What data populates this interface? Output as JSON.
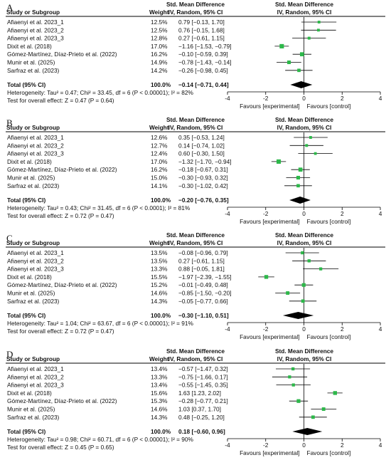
{
  "headers": {
    "study": "Study or Subgroup",
    "weight": "Weight",
    "smd_title": "Std. Mean Difference",
    "smd_method": "IV, Random, 95% CI"
  },
  "axis": {
    "ticks": [
      -4,
      -2,
      0,
      2,
      4
    ],
    "tick_labels": [
      "-4",
      "-2",
      "0",
      "2",
      "4"
    ],
    "favours_left": "Favours [experimental]",
    "favours_right": "Favours [control]"
  },
  "colors": {
    "point": "#2db84a",
    "diamond": "#000000",
    "line": "#000000"
  },
  "chart_data": [
    {
      "type": "forest",
      "panel": "A",
      "xlim": [
        -4,
        4
      ],
      "studies": [
        {
          "name": "Afiaenyi et al. 2023_1",
          "weight": "12.5%",
          "smd": 0.79,
          "lo": -0.13,
          "hi": 1.7,
          "ci_text": "0.79 [−0.13, 1.70]"
        },
        {
          "name": "Afiaenyi et al. 2023_2",
          "weight": "12.5%",
          "smd": 0.76,
          "lo": -0.15,
          "hi": 1.68,
          "ci_text": "0.76 [−0.15, 1.68]"
        },
        {
          "name": "Afiaenyi et al. 2023_3",
          "weight": "12.8%",
          "smd": 0.27,
          "lo": -0.61,
          "hi": 1.15,
          "ci_text": "0.27 [−0.61, 1.15]"
        },
        {
          "name": "Dixit et al. (2018)",
          "weight": "17.0%",
          "smd": -1.16,
          "lo": -1.53,
          "hi": -0.79,
          "ci_text": "−1.16 [−1.53, −0.79]"
        },
        {
          "name": "Gómez-Martínez, Díaz-Prieto et al. (2022)",
          "weight": "16.2%",
          "smd": -0.1,
          "lo": -0.59,
          "hi": 0.39,
          "ci_text": "−0.10 [−0.59, 0.39]"
        },
        {
          "name": "Munir et al. (2025)",
          "weight": "14.9%",
          "smd": -0.78,
          "lo": -1.43,
          "hi": -0.14,
          "ci_text": "−0.78 [−1.43, −0.14]"
        },
        {
          "name": "Sarfraz et al. (2023)",
          "weight": "14.2%",
          "smd": -0.26,
          "lo": -0.98,
          "hi": 0.45,
          "ci_text": "−0.26 [−0.98, 0.45]"
        }
      ],
      "total": {
        "label": "Total (95% CI)",
        "weight": "100.0%",
        "smd": -0.14,
        "lo": -0.71,
        "hi": 0.44,
        "ci_text": "−0.14 [−0.71, 0.44]"
      },
      "heterogeneity": "Heterogeneity: Tau² = 0.47; Chi² = 33.45, df = 6 (P < 0.00001); I² = 82%",
      "overall_effect": "Test for overall effect: Z = 0.47 (P = 0.64)"
    },
    {
      "type": "forest",
      "panel": "B",
      "xlim": [
        -4,
        4
      ],
      "studies": [
        {
          "name": "Afiaenyi et al. 2023_1",
          "weight": "12.6%",
          "smd": 0.35,
          "lo": -0.53,
          "hi": 1.24,
          "ci_text": "0.35 [−0.53, 1.24]"
        },
        {
          "name": "Afiaenyi et al. 2023_2",
          "weight": "12.7%",
          "smd": 0.14,
          "lo": -0.74,
          "hi": 1.02,
          "ci_text": "0.14 [−0.74, 1.02]"
        },
        {
          "name": "Afiaenyi et al. 2023_3",
          "weight": "12.4%",
          "smd": 0.6,
          "lo": -0.3,
          "hi": 1.5,
          "ci_text": "0.60 [−0.30, 1.50]"
        },
        {
          "name": "Dixit et al. (2018)",
          "weight": "17.0%",
          "smd": -1.32,
          "lo": -1.7,
          "hi": -0.94,
          "ci_text": "−1.32 [−1.70, −0.94]"
        },
        {
          "name": "Gómez-Martínez, Díaz-Prieto et al. (2022)",
          "weight": "16.2%",
          "smd": -0.18,
          "lo": -0.67,
          "hi": 0.31,
          "ci_text": "−0.18 [−0.67, 0.31]"
        },
        {
          "name": "Munir et al. (2025)",
          "weight": "15.0%",
          "smd": -0.3,
          "lo": -0.93,
          "hi": 0.32,
          "ci_text": "−0.30 [−0.93, 0.32]"
        },
        {
          "name": "Sarfraz et al. (2023)",
          "weight": "14.1%",
          "smd": -0.3,
          "lo": -1.02,
          "hi": 0.42,
          "ci_text": "−0.30 [−1.02, 0.42]"
        }
      ],
      "total": {
        "label": "Total (95% CI)",
        "weight": "100.0%",
        "smd": -0.2,
        "lo": -0.76,
        "hi": 0.35,
        "ci_text": "−0.20 [−0.76, 0.35]"
      },
      "heterogeneity": "Heterogeneity: Tau² = 0.43; Chi² = 31.45, df = 6 (P < 0.0001); I² = 81%",
      "overall_effect": "Test for overall effect: Z = 0.72 (P = 0.47)"
    },
    {
      "type": "forest",
      "panel": "C",
      "xlim": [
        -4,
        4
      ],
      "studies": [
        {
          "name": "Afiaenyi et al. 2023_1",
          "weight": "13.5%",
          "smd": -0.08,
          "lo": -0.96,
          "hi": 0.79,
          "ci_text": "−0.08 [−0.96, 0.79]"
        },
        {
          "name": "Afiaenyi et al. 2023_2",
          "weight": "13.5%",
          "smd": 0.27,
          "lo": -0.61,
          "hi": 1.15,
          "ci_text": "0.27 [−0.61, 1.15]"
        },
        {
          "name": "Afiaenyi et al. 2023_3",
          "weight": "13.3%",
          "smd": 0.88,
          "lo": -0.05,
          "hi": 1.81,
          "ci_text": "0.88 [−0.05, 1.81]"
        },
        {
          "name": "Dixit et al. (2018)",
          "weight": "15.5%",
          "smd": -1.97,
          "lo": -2.39,
          "hi": -1.55,
          "ci_text": "−1.97 [−2.39, −1.55]"
        },
        {
          "name": "Gómez-Martínez, Díaz-Prieto et al. (2022)",
          "weight": "15.2%",
          "smd": -0.01,
          "lo": -0.49,
          "hi": 0.48,
          "ci_text": "−0.01 [−0.49, 0.48]"
        },
        {
          "name": "Munir et al. (2025)",
          "weight": "14.6%",
          "smd": -0.85,
          "lo": -1.5,
          "hi": -0.2,
          "ci_text": "−0.85 [−1.50, −0.20]"
        },
        {
          "name": "Sarfraz et al. (2023)",
          "weight": "14.3%",
          "smd": -0.05,
          "lo": -0.77,
          "hi": 0.66,
          "ci_text": "−0.05 [−0.77, 0.66]"
        }
      ],
      "total": {
        "label": "Total (95% CI)",
        "weight": "100.0%",
        "smd": -0.3,
        "lo": -1.1,
        "hi": 0.51,
        "ci_text": "−0.30 [−1.10, 0.51]"
      },
      "heterogeneity": "Heterogeneity: Tau² = 1.04; Chi² = 63.67, df = 6 (P < 0.00001); I² = 91%",
      "overall_effect": "Test for overall effect: Z = 0.72 (P = 0.47)"
    },
    {
      "type": "forest",
      "panel": "D",
      "xlim": [
        -4,
        4
      ],
      "studies": [
        {
          "name": "Afiaenyi et al. 2023_1",
          "weight": "13.4%",
          "smd": -0.57,
          "lo": -1.47,
          "hi": 0.32,
          "ci_text": "−0.57 [−1.47, 0.32]"
        },
        {
          "name": "Afiaenyi et al. 2023_2",
          "weight": "13.3%",
          "smd": -0.75,
          "lo": -1.66,
          "hi": 0.17,
          "ci_text": "−0.75 [−1.66, 0.17]"
        },
        {
          "name": "Afiaenyi et al. 2023_3",
          "weight": "13.4%",
          "smd": -0.55,
          "lo": -1.45,
          "hi": 0.35,
          "ci_text": "−0.55 [−1.45, 0.35]"
        },
        {
          "name": "Dixit et al. (2018)",
          "weight": "15.6%",
          "smd": 1.63,
          "lo": 1.23,
          "hi": 2.02,
          "ci_text": "1.63 [1.23, 2.02]"
        },
        {
          "name": "Gómez-Martínez, Díaz-Prieto et al. (2022)",
          "weight": "15.3%",
          "smd": -0.28,
          "lo": -0.77,
          "hi": 0.21,
          "ci_text": "−0.28 [−0.77, 0.21]"
        },
        {
          "name": "Munir et al. (2025)",
          "weight": "14.6%",
          "smd": 1.03,
          "lo": 0.37,
          "hi": 1.7,
          "ci_text": "1.03 [0.37, 1.70]"
        },
        {
          "name": "Sarfraz et al. (2023)",
          "weight": "14.3%",
          "smd": 0.48,
          "lo": -0.25,
          "hi": 1.2,
          "ci_text": "0.48 [−0.25, 1.20]"
        }
      ],
      "total": {
        "label": "Total (95% CI)",
        "weight": "100.0%",
        "smd": 0.18,
        "lo": -0.6,
        "hi": 0.96,
        "ci_text": "0.18 [−0.60, 0.96]"
      },
      "heterogeneity": "Heterogeneity: Tau² = 0.98; Chi² = 60.71, df = 6 (P < 0.00001); I² = 90%",
      "overall_effect": "Test for overall effect: Z = 0.45 (P = 0.65)"
    }
  ]
}
